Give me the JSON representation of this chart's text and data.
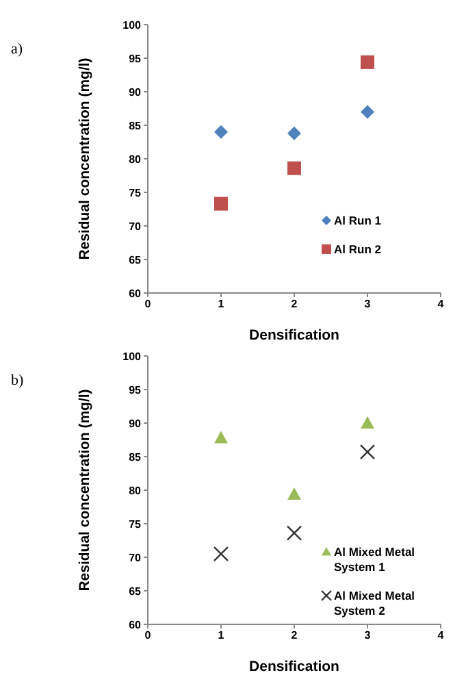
{
  "chart_data": [
    {
      "type": "scatter",
      "annotations": [
        "a)"
      ],
      "xlabel": "Densification",
      "ylabel": "Residual concentration (mg/l)",
      "xlim": [
        0,
        4
      ],
      "xticks": [
        0,
        1,
        2,
        3,
        4
      ],
      "ylim": [
        60,
        100
      ],
      "yticks": [
        60,
        65,
        70,
        75,
        80,
        85,
        90,
        95,
        100
      ],
      "grid": false,
      "legend": "bottom right",
      "series": [
        {
          "name": "Al Run 1",
          "color": "#4f81bd",
          "marker": "diamond",
          "x": [
            1,
            2,
            3
          ],
          "values": [
            84,
            83.8,
            87
          ]
        },
        {
          "name": "Al Run 2",
          "color": "#c0504d",
          "marker": "square",
          "x": [
            1,
            2,
            3
          ],
          "values": [
            73.3,
            78.6,
            94.4
          ]
        }
      ]
    },
    {
      "type": "scatter",
      "annotations": [
        "b)"
      ],
      "xlabel": "Densification",
      "ylabel": "Residual concentration (mg/l)",
      "xlim": [
        0,
        4
      ],
      "xticks": [
        0,
        1,
        2,
        3,
        4
      ],
      "ylim": [
        60,
        100
      ],
      "yticks": [
        60,
        65,
        70,
        75,
        80,
        85,
        90,
        95,
        100
      ],
      "grid": false,
      "legend": "bottom right",
      "series": [
        {
          "name": "Al Mixed Metal System 1",
          "color": "#9bbb59",
          "marker": "triangle",
          "x": [
            1,
            2,
            3
          ],
          "values": [
            87.8,
            79.4,
            90
          ]
        },
        {
          "name": "Al Mixed Metal System 2",
          "color": "#333333",
          "marker": "cross",
          "x": [
            1,
            2,
            3
          ],
          "values": [
            70.5,
            73.6,
            85.7
          ]
        }
      ]
    }
  ]
}
